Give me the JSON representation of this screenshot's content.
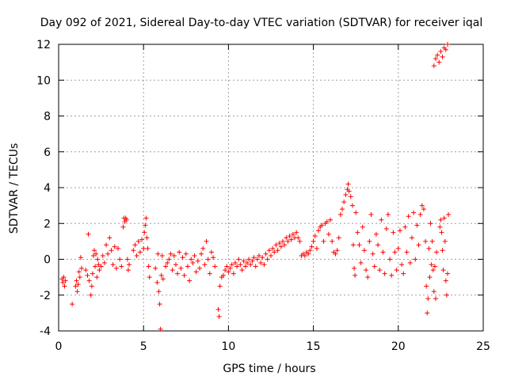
{
  "chart_data": {
    "type": "scatter",
    "title": "Day 092 of 2021, Sidereal Day-to-day VTEC variation (SDTVAR) for receiver iqal",
    "xlabel": "GPS time / hours",
    "ylabel": "SDTVAR / TECUs",
    "xlim": [
      0,
      25
    ],
    "ylim": [
      -4,
      12
    ],
    "xticks": [
      0,
      5,
      10,
      15,
      20,
      25
    ],
    "yticks": [
      -4,
      -2,
      0,
      2,
      4,
      6,
      8,
      10,
      12
    ],
    "grid": true,
    "marker": "+",
    "color": "#ff0000",
    "series": [
      {
        "name": "SDTVAR",
        "points": [
          [
            0.2,
            -1.1
          ],
          [
            0.25,
            -1.3
          ],
          [
            0.3,
            -1.0
          ],
          [
            0.35,
            -1.5
          ],
          [
            0.4,
            -1.2
          ],
          [
            0.8,
            -2.5
          ],
          [
            1.0,
            -1.5
          ],
          [
            1.05,
            -1.2
          ],
          [
            1.1,
            -1.8
          ],
          [
            1.15,
            -1.4
          ],
          [
            1.2,
            -0.7
          ],
          [
            1.25,
            -1.0
          ],
          [
            1.3,
            0.1
          ],
          [
            1.35,
            -0.5
          ],
          [
            1.6,
            -0.6
          ],
          [
            1.7,
            -0.9
          ],
          [
            1.75,
            1.4
          ],
          [
            1.8,
            -1.2
          ],
          [
            1.9,
            -2.0
          ],
          [
            1.95,
            -1.5
          ],
          [
            2.0,
            -0.8
          ],
          [
            2.05,
            0.2
          ],
          [
            2.1,
            0.5
          ],
          [
            2.15,
            -0.4
          ],
          [
            2.2,
            0.3
          ],
          [
            2.25,
            -1.0
          ],
          [
            2.3,
            0.0
          ],
          [
            2.35,
            -0.3
          ],
          [
            2.4,
            -0.6
          ],
          [
            2.5,
            -0.4
          ],
          [
            2.6,
            0.2
          ],
          [
            2.7,
            -0.2
          ],
          [
            2.8,
            0.8
          ],
          [
            2.9,
            0.3
          ],
          [
            3.0,
            1.2
          ],
          [
            3.1,
            0.5
          ],
          [
            3.2,
            -0.3
          ],
          [
            3.3,
            0.7
          ],
          [
            3.4,
            -0.5
          ],
          [
            3.5,
            0.6
          ],
          [
            3.6,
            0.0
          ],
          [
            3.7,
            -0.4
          ],
          [
            3.8,
            1.8
          ],
          [
            3.85,
            2.3
          ],
          [
            3.9,
            2.1
          ],
          [
            3.95,
            2.3
          ],
          [
            4.0,
            2.2
          ],
          [
            4.05,
            0.0
          ],
          [
            4.1,
            -0.6
          ],
          [
            4.15,
            -0.3
          ],
          [
            4.4,
            0.5
          ],
          [
            4.5,
            0.8
          ],
          [
            4.6,
            0.2
          ],
          [
            4.7,
            1.0
          ],
          [
            4.8,
            0.4
          ],
          [
            4.9,
            1.1
          ],
          [
            5.0,
            0.6
          ],
          [
            5.05,
            1.5
          ],
          [
            5.1,
            1.9
          ],
          [
            5.15,
            2.3
          ],
          [
            5.2,
            1.2
          ],
          [
            5.25,
            0.6
          ],
          [
            5.3,
            -0.4
          ],
          [
            5.35,
            -1.0
          ],
          [
            5.7,
            -0.5
          ],
          [
            5.8,
            -1.3
          ],
          [
            5.85,
            0.3
          ],
          [
            5.9,
            -1.8
          ],
          [
            5.95,
            -2.5
          ],
          [
            6.0,
            -3.9
          ],
          [
            6.05,
            -0.9
          ],
          [
            6.1,
            0.2
          ],
          [
            6.15,
            -1.1
          ],
          [
            6.3,
            -0.4
          ],
          [
            6.4,
            -0.2
          ],
          [
            6.5,
            0.0
          ],
          [
            6.6,
            0.3
          ],
          [
            6.7,
            -0.6
          ],
          [
            6.8,
            0.2
          ],
          [
            6.9,
            -0.3
          ],
          [
            7.0,
            -0.8
          ],
          [
            7.1,
            0.4
          ],
          [
            7.2,
            -0.5
          ],
          [
            7.3,
            0.1
          ],
          [
            7.4,
            -0.9
          ],
          [
            7.5,
            0.3
          ],
          [
            7.6,
            -0.4
          ],
          [
            7.7,
            -1.2
          ],
          [
            7.8,
            0.0
          ],
          [
            7.9,
            -0.2
          ],
          [
            8.0,
            0.2
          ],
          [
            8.1,
            -0.7
          ],
          [
            8.2,
            -0.1
          ],
          [
            8.3,
            -0.5
          ],
          [
            8.4,
            0.3
          ],
          [
            8.5,
            0.6
          ],
          [
            8.6,
            -0.3
          ],
          [
            8.7,
            1.0
          ],
          [
            8.8,
            0.0
          ],
          [
            8.9,
            -0.8
          ],
          [
            9.0,
            0.4
          ],
          [
            9.1,
            0.1
          ],
          [
            9.2,
            -0.4
          ],
          [
            9.4,
            -2.8
          ],
          [
            9.45,
            -3.2
          ],
          [
            9.5,
            -1.5
          ],
          [
            9.6,
            -1.0
          ],
          [
            9.7,
            -0.9
          ],
          [
            9.8,
            -0.6
          ],
          [
            9.9,
            -0.4
          ],
          [
            10.0,
            -0.7
          ],
          [
            10.1,
            -0.5
          ],
          [
            10.2,
            -0.3
          ],
          [
            10.3,
            -0.8
          ],
          [
            10.4,
            -0.2
          ],
          [
            10.5,
            -0.4
          ],
          [
            10.6,
            0.0
          ],
          [
            10.7,
            -0.3
          ],
          [
            10.8,
            -0.6
          ],
          [
            10.9,
            -0.1
          ],
          [
            11.0,
            -0.4
          ],
          [
            11.1,
            -0.2
          ],
          [
            11.2,
            0.0
          ],
          [
            11.3,
            -0.3
          ],
          [
            11.4,
            -0.1
          ],
          [
            11.5,
            0.1
          ],
          [
            11.6,
            -0.4
          ],
          [
            11.7,
            0.0
          ],
          [
            11.8,
            0.2
          ],
          [
            11.9,
            -0.2
          ],
          [
            12.0,
            0.1
          ],
          [
            12.1,
            -0.3
          ],
          [
            12.2,
            0.3
          ],
          [
            12.3,
            0.0
          ],
          [
            12.4,
            0.5
          ],
          [
            12.5,
            0.2
          ],
          [
            12.6,
            0.6
          ],
          [
            12.7,
            0.4
          ],
          [
            12.8,
            0.8
          ],
          [
            12.9,
            0.5
          ],
          [
            13.0,
            0.9
          ],
          [
            13.1,
            0.7
          ],
          [
            13.2,
            1.0
          ],
          [
            13.3,
            0.8
          ],
          [
            13.4,
            1.2
          ],
          [
            13.5,
            1.0
          ],
          [
            13.6,
            1.3
          ],
          [
            13.7,
            1.1
          ],
          [
            13.8,
            1.4
          ],
          [
            13.9,
            1.2
          ],
          [
            14.0,
            1.5
          ],
          [
            14.1,
            1.2
          ],
          [
            14.2,
            1.0
          ],
          [
            14.3,
            0.2
          ],
          [
            14.4,
            0.3
          ],
          [
            14.5,
            0.2
          ],
          [
            14.6,
            0.4
          ],
          [
            14.7,
            0.3
          ],
          [
            14.8,
            0.5
          ],
          [
            14.9,
            0.7
          ],
          [
            15.0,
            1.0
          ],
          [
            15.1,
            1.3
          ],
          [
            15.2,
            0.6
          ],
          [
            15.3,
            1.6
          ],
          [
            15.4,
            1.8
          ],
          [
            15.5,
            1.9
          ],
          [
            15.6,
            1.0
          ],
          [
            15.7,
            2.0
          ],
          [
            15.8,
            2.1
          ],
          [
            15.9,
            1.4
          ],
          [
            16.0,
            2.2
          ],
          [
            16.1,
            1.0
          ],
          [
            16.2,
            0.4
          ],
          [
            16.3,
            0.3
          ],
          [
            16.4,
            0.5
          ],
          [
            16.5,
            1.2
          ],
          [
            16.6,
            2.5
          ],
          [
            16.7,
            2.8
          ],
          [
            16.8,
            3.2
          ],
          [
            16.9,
            3.6
          ],
          [
            17.0,
            3.9
          ],
          [
            17.05,
            4.2
          ],
          [
            17.1,
            3.8
          ],
          [
            17.2,
            3.5
          ],
          [
            17.3,
            3.0
          ],
          [
            17.35,
            0.8
          ],
          [
            17.4,
            -0.5
          ],
          [
            17.45,
            -0.9
          ],
          [
            17.5,
            2.6
          ],
          [
            17.6,
            1.5
          ],
          [
            17.7,
            0.8
          ],
          [
            17.8,
            -0.2
          ],
          [
            17.9,
            1.8
          ],
          [
            18.0,
            0.5
          ],
          [
            18.1,
            -0.6
          ],
          [
            18.2,
            -1.0
          ],
          [
            18.3,
            1.0
          ],
          [
            18.4,
            2.5
          ],
          [
            18.5,
            0.3
          ],
          [
            18.6,
            -0.4
          ],
          [
            18.7,
            1.4
          ],
          [
            18.8,
            0.8
          ],
          [
            18.9,
            -0.6
          ],
          [
            19.0,
            2.2
          ],
          [
            19.1,
            0.4
          ],
          [
            19.2,
            -0.8
          ],
          [
            19.3,
            1.7
          ],
          [
            19.4,
            2.5
          ],
          [
            19.5,
            0.0
          ],
          [
            19.6,
            -0.9
          ],
          [
            19.7,
            1.5
          ],
          [
            19.8,
            0.4
          ],
          [
            19.9,
            -0.6
          ],
          [
            20.0,
            0.6
          ],
          [
            20.1,
            1.6
          ],
          [
            20.2,
            -0.3
          ],
          [
            20.3,
            -0.8
          ],
          [
            20.4,
            1.8
          ],
          [
            20.5,
            0.4
          ],
          [
            20.6,
            2.4
          ],
          [
            20.7,
            -0.2
          ],
          [
            20.8,
            1.2
          ],
          [
            20.9,
            2.6
          ],
          [
            21.0,
            0.0
          ],
          [
            21.1,
            1.9
          ],
          [
            21.2,
            0.8
          ],
          [
            21.3,
            2.5
          ],
          [
            21.4,
            3.0
          ],
          [
            21.5,
            2.8
          ],
          [
            21.6,
            1.0
          ],
          [
            21.65,
            -1.5
          ],
          [
            21.7,
            -3.0
          ],
          [
            21.75,
            -2.2
          ],
          [
            21.8,
            0.6
          ],
          [
            21.85,
            -1.0
          ],
          [
            21.9,
            2.0
          ],
          [
            21.95,
            -0.3
          ],
          [
            22.0,
            1.0
          ],
          [
            22.05,
            -0.6
          ],
          [
            22.1,
            -1.8
          ],
          [
            22.15,
            -0.4
          ],
          [
            22.2,
            -2.2
          ],
          [
            22.25,
            0.4
          ],
          [
            22.1,
            10.8
          ],
          [
            22.2,
            11.2
          ],
          [
            22.3,
            11.4
          ],
          [
            22.4,
            11.0
          ],
          [
            22.5,
            11.6
          ],
          [
            22.6,
            11.3
          ],
          [
            22.7,
            11.8
          ],
          [
            22.8,
            11.7
          ],
          [
            22.9,
            12.0
          ],
          [
            22.45,
            1.8
          ],
          [
            22.5,
            2.2
          ],
          [
            22.55,
            1.5
          ],
          [
            22.6,
            0.5
          ],
          [
            22.65,
            -0.6
          ],
          [
            22.7,
            2.3
          ],
          [
            22.75,
            1.0
          ],
          [
            22.8,
            -1.2
          ],
          [
            22.85,
            -2.0
          ],
          [
            22.9,
            -0.8
          ],
          [
            22.95,
            2.5
          ]
        ]
      }
    ]
  }
}
